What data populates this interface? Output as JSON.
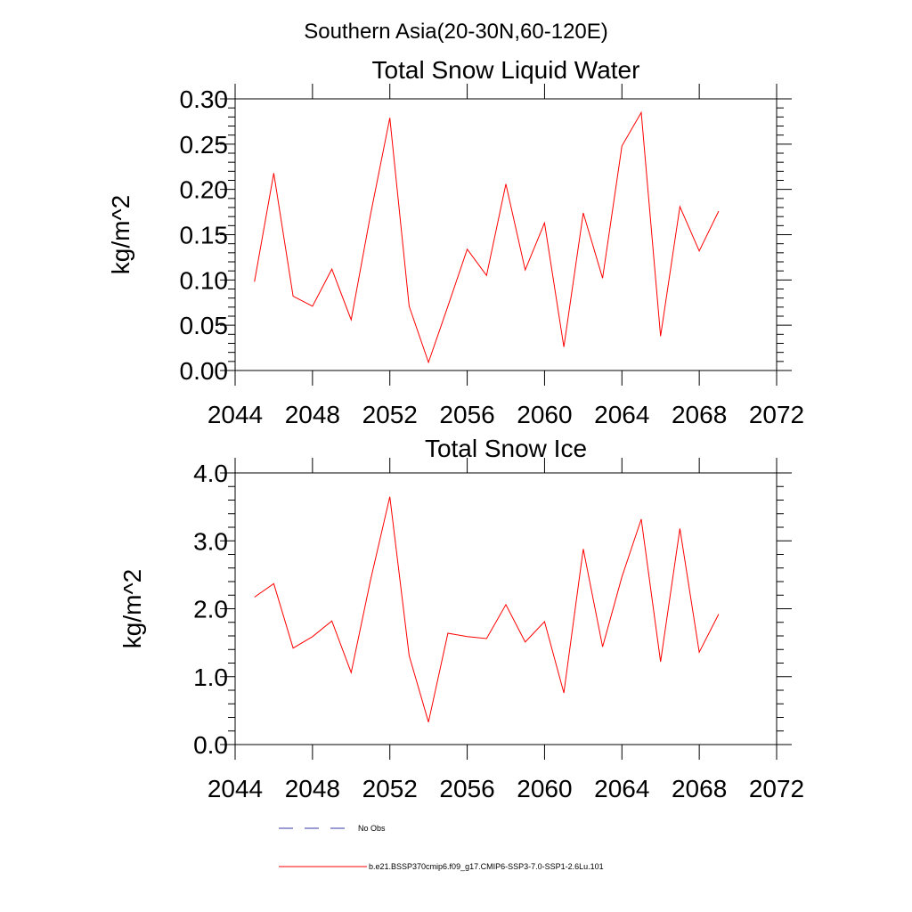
{
  "figure": {
    "suptitle": "Southern Asia(20-30N,60-120E)"
  },
  "legend": {
    "entries": [
      {
        "label": "No Obs",
        "color": "#3a3aa8",
        "dash": "dashed"
      },
      {
        "label": "b.e21.BSSP370cmip6.f09_g17.CMIP6-SSP3-7.0-SSP1-2.6Lu.101",
        "color": "#ff0000",
        "dash": "solid"
      }
    ]
  },
  "chart_data": [
    {
      "type": "line",
      "title": "Total Snow Liquid Water",
      "xlabel": "",
      "ylabel": "kg/m^2",
      "xlim": [
        2044,
        2072
      ],
      "ylim": [
        0,
        0.3
      ],
      "x_ticks": [
        "2044",
        "2048",
        "2052",
        "2056",
        "2060",
        "2064",
        "2068",
        "2072"
      ],
      "y_ticks": [
        "0.00",
        "0.05",
        "0.10",
        "0.15",
        "0.20",
        "0.25",
        "0.30"
      ],
      "x": [
        2045,
        2046,
        2047,
        2048,
        2049,
        2050,
        2051,
        2052,
        2053,
        2054,
        2055,
        2056,
        2057,
        2058,
        2059,
        2060,
        2061,
        2062,
        2063,
        2064,
        2065,
        2066,
        2067,
        2068,
        2069
      ],
      "series": [
        {
          "name": "b.e21.BSSP370cmip6.f09_g17.CMIP6-SSP3-7.0-SSP1-2.6Lu.101",
          "color": "#ff0000",
          "values": [
            0.098,
            0.218,
            0.082,
            0.071,
            0.112,
            0.056,
            0.172,
            0.279,
            0.071,
            0.009,
            0.071,
            0.134,
            0.105,
            0.206,
            0.111,
            0.163,
            0.026,
            0.174,
            0.102,
            0.248,
            0.285,
            0.038,
            0.181,
            0.132,
            0.176
          ]
        }
      ]
    },
    {
      "type": "line",
      "title": "Total Snow Ice",
      "xlabel": "",
      "ylabel": "kg/m^2",
      "xlim": [
        2044,
        2072
      ],
      "ylim": [
        0,
        4.0
      ],
      "x_ticks": [
        "2044",
        "2048",
        "2052",
        "2056",
        "2060",
        "2064",
        "2068",
        "2072"
      ],
      "y_ticks": [
        "0.0",
        "1.0",
        "2.0",
        "3.0",
        "4.0"
      ],
      "x": [
        2045,
        2046,
        2047,
        2048,
        2049,
        2050,
        2051,
        2052,
        2053,
        2054,
        2055,
        2056,
        2057,
        2058,
        2059,
        2060,
        2061,
        2062,
        2063,
        2064,
        2065,
        2066,
        2067,
        2068,
        2069
      ],
      "series": [
        {
          "name": "b.e21.BSSP370cmip6.f09_g17.CMIP6-SSP3-7.0-SSP1-2.6Lu.101",
          "color": "#ff0000",
          "values": [
            2.17,
            2.37,
            1.42,
            1.59,
            1.82,
            1.06,
            2.42,
            3.65,
            1.31,
            0.33,
            1.64,
            1.59,
            1.56,
            2.06,
            1.51,
            1.81,
            0.76,
            2.88,
            1.44,
            2.47,
            3.32,
            1.22,
            3.18,
            1.36,
            1.92
          ]
        }
      ]
    }
  ]
}
